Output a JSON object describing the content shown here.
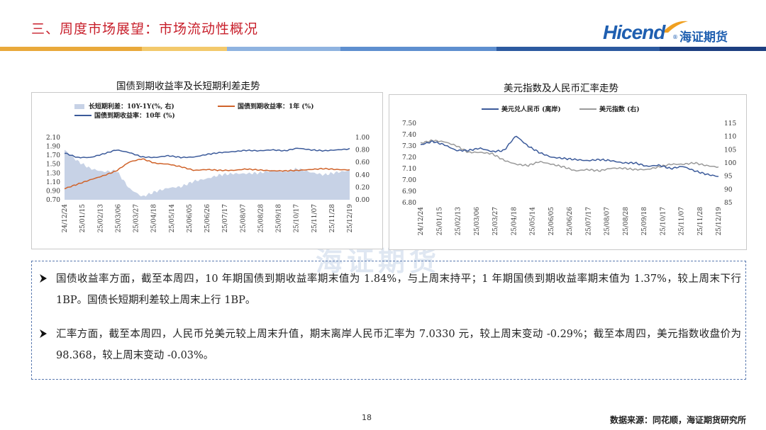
{
  "header": {
    "title": "三、周度市场展望：市场流动性概况",
    "logo_text": "Hicend",
    "logo_cn": "海证期货",
    "logo_reg": "®"
  },
  "colors": {
    "title_red": "#c8202c",
    "brand_blue": "#1f5fb0",
    "stripe": [
      "#e9a93b",
      "#f3c96c",
      "#5e8fcf",
      "#2c5aa0",
      "#8fb3e0",
      "#1d3f80"
    ],
    "spread_fill": "#c7d2e6",
    "bond_10y": "#3b5a9a",
    "bond_1y": "#d0632a",
    "cny_line": "#3b5a9a",
    "usd_index_line": "#9a9a9a"
  },
  "watermark": "海证期货",
  "chart_data": [
    {
      "type": "area+line",
      "title": "国债到期收益率及长短期利差走势",
      "legend": [
        "长短期利差：10Y-1Y(%, 右)",
        "国债到期收益率：1年 (%)",
        "国债到期收益率：10年 (%)"
      ],
      "x_ticks": [
        "24/12/24",
        "25/01/15",
        "25/02/13",
        "25/03/06",
        "25/03/27",
        "25/04/18",
        "25/05/14",
        "25/06/05",
        "25/06/26",
        "25/07/17",
        "25/08/07",
        "25/08/28",
        "25/09/18",
        "25/10/17",
        "25/11/07",
        "25/11/28",
        "25/12/19"
      ],
      "y_left": {
        "ticks": [
          "2.10",
          "1.90",
          "1.70",
          "1.50",
          "1.30",
          "1.10",
          "0.90",
          "0.70"
        ],
        "range": [
          0.7,
          2.1
        ]
      },
      "y_right": {
        "ticks": [
          "1.00",
          "0.80",
          "0.60",
          "0.40",
          "0.20",
          "0.00"
        ],
        "range": [
          0,
          1.0
        ]
      },
      "series": [
        {
          "name": "国债到期收益率：10年 (%)",
          "axis": "left",
          "values": [
            1.75,
            1.65,
            1.65,
            1.73,
            1.82,
            1.76,
            1.66,
            1.65,
            1.69,
            1.65,
            1.66,
            1.72,
            1.76,
            1.78,
            1.81,
            1.8,
            1.82,
            1.8,
            1.86,
            1.82,
            1.8,
            1.82,
            1.84
          ]
        },
        {
          "name": "国债到期收益率：1年 (%)",
          "axis": "left",
          "values": [
            0.95,
            1.05,
            1.15,
            1.24,
            1.35,
            1.55,
            1.62,
            1.52,
            1.5,
            1.44,
            1.36,
            1.38,
            1.36,
            1.36,
            1.39,
            1.37,
            1.35,
            1.35,
            1.36,
            1.38,
            1.4,
            1.38,
            1.37
          ]
        },
        {
          "name": "长短期利差：10Y-1Y(%, 右)",
          "axis": "right",
          "values": [
            0.8,
            0.62,
            0.5,
            0.45,
            0.47,
            0.18,
            0.05,
            0.13,
            0.19,
            0.21,
            0.3,
            0.34,
            0.4,
            0.42,
            0.42,
            0.43,
            0.47,
            0.45,
            0.5,
            0.44,
            0.4,
            0.44,
            0.47
          ]
        }
      ]
    },
    {
      "type": "line",
      "title": "美元指数及人民币汇率走势",
      "legend": [
        "美元兑人民币 (离岸)",
        "美元指数 (右)"
      ],
      "x_ticks": [
        "24/12/24",
        "25/01/15",
        "25/02/13",
        "25/03/06",
        "25/03/27",
        "25/04/18",
        "25/05/14",
        "25/06/05",
        "25/06/26",
        "25/07/17",
        "25/08/07",
        "25/08/28",
        "25/09/18",
        "25/10/17",
        "25/11/07",
        "25/11/28",
        "25/12/19"
      ],
      "y_left": {
        "ticks": [
          "7.50",
          "7.40",
          "7.30",
          "7.20",
          "7.10",
          "7.00",
          "6.90",
          "6.80"
        ],
        "range": [
          6.8,
          7.5
        ]
      },
      "y_right": {
        "ticks": [
          "115",
          "110",
          "105",
          "100",
          "95",
          "90",
          "85"
        ],
        "range": [
          85,
          115
        ]
      },
      "series": [
        {
          "name": "美元兑人民币 (离岸)",
          "axis": "left",
          "values": [
            7.31,
            7.34,
            7.31,
            7.26,
            7.26,
            7.28,
            7.25,
            7.26,
            7.39,
            7.3,
            7.24,
            7.2,
            7.19,
            7.18,
            7.17,
            7.18,
            7.17,
            7.15,
            7.15,
            7.12,
            7.13,
            7.1,
            7.12,
            7.08,
            7.05,
            7.03
          ]
        },
        {
          "name": "美元指数 (右)",
          "axis": "right",
          "values": [
            107.5,
            108.5,
            108.0,
            106.5,
            104.0,
            104.0,
            103.5,
            101.0,
            99.5,
            99.0,
            100.5,
            99.5,
            98.5,
            97.0,
            97.5,
            97.0,
            98.0,
            98.0,
            97.5,
            97.5,
            98.5,
            99.5,
            99.5,
            100.0,
            99.0,
            98.4
          ]
        }
      ]
    }
  ],
  "summary": {
    "p1": "国债收益率方面，截至本周四，10 年期国债到期收益率期末值为 1.84%，与上周末持平；1 年期国债到期收益率期末值为 1.37%，较上周末下行 1BP。国债长短期利差较上周末上行 1BP。",
    "p2": "汇率方面，截至本周四，人民币兑美元较上周末升值，期末离岸人民币汇率为 7.0330 元，较上周末变动 -0.29%；截至本周四，美元指数收盘价为 98.368，较上周末变动 -0.03%。"
  },
  "footer": {
    "page_number": "18",
    "source": "数据来源：同花顺，海证期货研究所"
  }
}
